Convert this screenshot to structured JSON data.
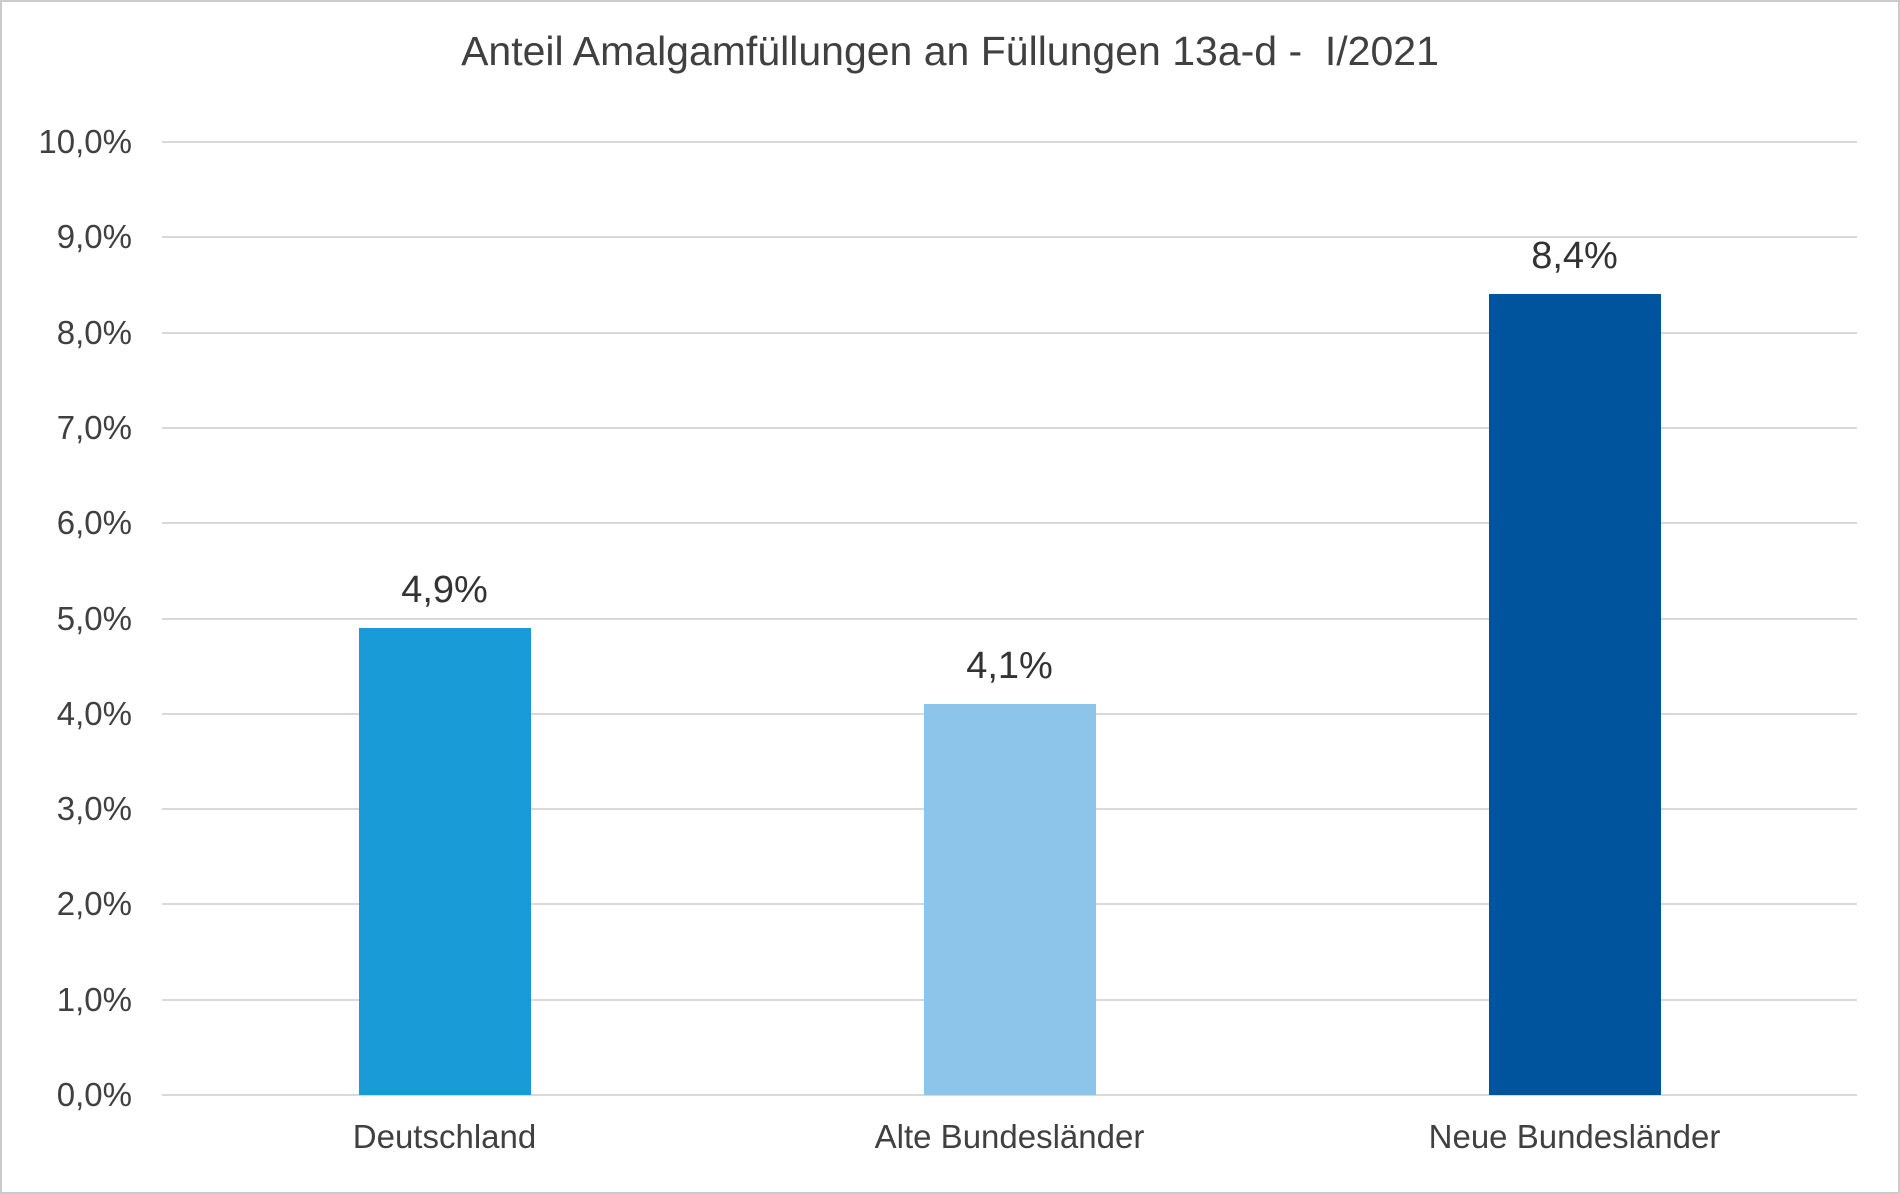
{
  "chart_data": {
    "type": "bar",
    "title": "Anteil Amalgamfüllungen an Füllungen 13a-d -  I/2021",
    "categories": [
      "Deutschland",
      "Alte Bundesländer",
      "Neue Bundesländer"
    ],
    "values": [
      4.9,
      4.1,
      8.4
    ],
    "value_labels": [
      "4,9%",
      "4,1%",
      "8,4%"
    ],
    "bar_colors": [
      "#199BD8",
      "#8CC4EA",
      "#00549E"
    ],
    "xlabel": "",
    "ylabel": "",
    "ylim": [
      0,
      10
    ],
    "yticks": [
      {
        "value": 0,
        "label": "0,0%"
      },
      {
        "value": 1,
        "label": "1,0%"
      },
      {
        "value": 2,
        "label": "2,0%"
      },
      {
        "value": 3,
        "label": "3,0%"
      },
      {
        "value": 4,
        "label": "4,0%"
      },
      {
        "value": 5,
        "label": "5,0%"
      },
      {
        "value": 6,
        "label": "6,0%"
      },
      {
        "value": 7,
        "label": "7,0%"
      },
      {
        "value": 8,
        "label": "8,0%"
      },
      {
        "value": 9,
        "label": "9,0%"
      },
      {
        "value": 10,
        "label": "10,0%"
      }
    ],
    "grid": "horizontal",
    "legend": "none",
    "colors": {
      "gridline": "#d9d9d9",
      "frame_border": "#cbcbcb",
      "title_text": "#404040",
      "tick_text": "#404040",
      "value_label_text": "#333333",
      "background": "#ffffff"
    }
  }
}
